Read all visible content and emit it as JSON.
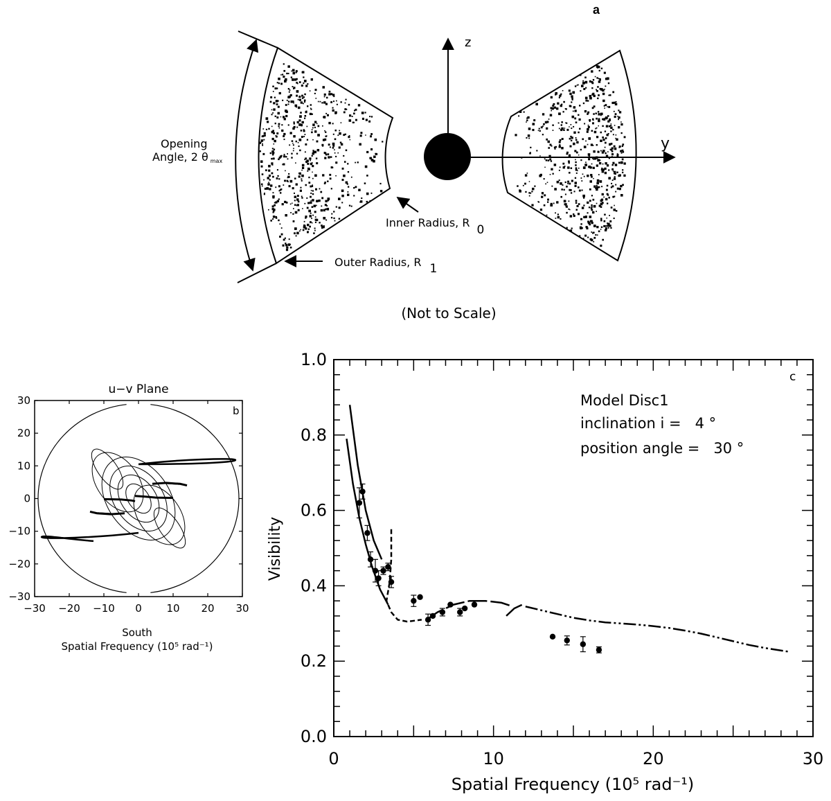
{
  "panel_a": {
    "letter": "a",
    "axis_z": "z",
    "axis_y": "y",
    "opening_angle_line1": "Opening",
    "opening_angle_line2": "Angle, 2 θ",
    "opening_angle_sub": "max",
    "inner_radius": "Inner Radius, R",
    "inner_radius_sub": "0",
    "outer_radius": "Outer Radius, R",
    "outer_radius_sub": "1",
    "note": "(Not to Scale)"
  },
  "chart_data": [
    {
      "type": "diagram",
      "panel": "b",
      "title": "u−v Plane",
      "xlabel_line1": "South",
      "xlabel_line2": "Spatial Frequency (10⁵ rad⁻¹)",
      "xlim": [
        -30,
        30
      ],
      "ylim": [
        -30,
        30
      ],
      "xticks": [
        -30,
        -20,
        -10,
        0,
        10,
        20,
        30
      ],
      "yticks": [
        -30,
        -20,
        -10,
        0,
        10,
        20,
        30
      ],
      "xtick_labels": [
        "−30",
        "−20",
        "−10",
        "0",
        "10",
        "20",
        "30"
      ],
      "ytick_labels": [
        "−30",
        "−20",
        "−10",
        "0",
        "10",
        "20",
        "30"
      ],
      "circle_radius": 29,
      "tracks": [
        {
          "x": [
            -1,
            2,
            5,
            10
          ],
          "y": [
            0.8,
            0.6,
            0.3,
            0.2
          ]
        },
        {
          "x": [
            4,
            8,
            12,
            14
          ],
          "y": [
            4.5,
            4.8,
            4.5,
            4.0
          ]
        },
        {
          "x": [
            -4,
            -8,
            -12,
            -14
          ],
          "y": [
            -4.5,
            -4.8,
            -4.5,
            -4.0
          ]
        },
        {
          "x": [
            -1,
            -2,
            -5,
            -10
          ],
          "y": [
            -0.8,
            -0.6,
            -0.3,
            -0.2
          ]
        }
      ]
    },
    {
      "type": "scatter",
      "panel": "c",
      "xlabel": "Spatial Frequency (10⁵ rad⁻¹)",
      "ylabel": "Visibility",
      "xlim": [
        0,
        30
      ],
      "ylim": [
        0,
        1
      ],
      "xticks": [
        0,
        10,
        20,
        30
      ],
      "yticks": [
        0.0,
        0.2,
        0.4,
        0.6,
        0.8,
        1.0
      ],
      "xtick_labels": [
        "0",
        "10",
        "20",
        "30"
      ],
      "ytick_labels": [
        "0.0",
        "0.2",
        "0.4",
        "0.6",
        "0.8",
        "1.0"
      ],
      "annotation_lines": [
        "Model Disc1",
        "inclination i =   4 °",
        "position angle =   30 °"
      ],
      "points": [
        {
          "x": 1.6,
          "y": 0.62,
          "err": 0.04
        },
        {
          "x": 1.8,
          "y": 0.65,
          "err": 0.02
        },
        {
          "x": 2.1,
          "y": 0.54,
          "err": 0.02
        },
        {
          "x": 2.3,
          "y": 0.47,
          "err": 0.02
        },
        {
          "x": 2.6,
          "y": 0.44,
          "err": 0.03
        },
        {
          "x": 2.8,
          "y": 0.42,
          "err": 0.02
        },
        {
          "x": 3.1,
          "y": 0.44,
          "err": 0.01
        },
        {
          "x": 3.4,
          "y": 0.45,
          "err": 0.01
        },
        {
          "x": 3.6,
          "y": 0.41,
          "err": 0.015
        },
        {
          "x": 5.0,
          "y": 0.36,
          "err": 0.015
        },
        {
          "x": 5.4,
          "y": 0.37,
          "err": 0.0
        },
        {
          "x": 5.9,
          "y": 0.31,
          "err": 0.015
        },
        {
          "x": 6.2,
          "y": 0.32,
          "err": 0.0
        },
        {
          "x": 6.8,
          "y": 0.33,
          "err": 0.01
        },
        {
          "x": 7.3,
          "y": 0.35,
          "err": 0.0
        },
        {
          "x": 7.9,
          "y": 0.33,
          "err": 0.01
        },
        {
          "x": 8.2,
          "y": 0.34,
          "err": 0.0
        },
        {
          "x": 8.8,
          "y": 0.35,
          "err": 0.0
        },
        {
          "x": 13.7,
          "y": 0.265,
          "err": 0.0
        },
        {
          "x": 14.6,
          "y": 0.255,
          "err": 0.012
        },
        {
          "x": 15.6,
          "y": 0.245,
          "err": 0.02
        },
        {
          "x": 16.6,
          "y": 0.23,
          "err": 0.008
        }
      ],
      "model_curves": [
        {
          "style": "solid",
          "x": [
            0.8,
            1.2,
            1.6,
            2.0,
            2.4,
            2.9,
            3.4
          ],
          "y": [
            0.79,
            0.67,
            0.58,
            0.51,
            0.45,
            0.39,
            0.35
          ]
        },
        {
          "style": "solid",
          "x": [
            1.0,
            1.5,
            2.0,
            2.5,
            3.0
          ],
          "y": [
            0.88,
            0.72,
            0.6,
            0.52,
            0.47
          ]
        },
        {
          "style": "dashed",
          "x": [
            3.6,
            3.6,
            3.5,
            3.3,
            3.6,
            4.0,
            4.6,
            5.5
          ],
          "y": [
            0.55,
            0.47,
            0.41,
            0.36,
            0.33,
            0.31,
            0.305,
            0.31
          ]
        },
        {
          "style": "long-dash",
          "x": [
            5.8,
            6.5,
            7.5,
            8.5,
            9.5,
            10.5,
            11.2
          ],
          "y": [
            0.31,
            0.33,
            0.35,
            0.36,
            0.36,
            0.355,
            0.345
          ]
        },
        {
          "style": "long-dash",
          "x": [
            10.8,
            11.3,
            11.8
          ],
          "y": [
            0.32,
            0.34,
            0.35
          ]
        },
        {
          "style": "dash-dot-dot",
          "x": [
            12.0,
            13.0,
            14.0,
            15.0,
            16.0,
            17.0,
            18.0,
            19.0,
            20.0,
            21.0,
            22.0,
            23.0,
            24.0,
            25.0,
            26.0,
            27.0,
            28.5
          ],
          "y": [
            0.345,
            0.335,
            0.325,
            0.315,
            0.308,
            0.303,
            0.3,
            0.297,
            0.293,
            0.288,
            0.281,
            0.273,
            0.263,
            0.253,
            0.243,
            0.235,
            0.225
          ]
        }
      ]
    }
  ]
}
